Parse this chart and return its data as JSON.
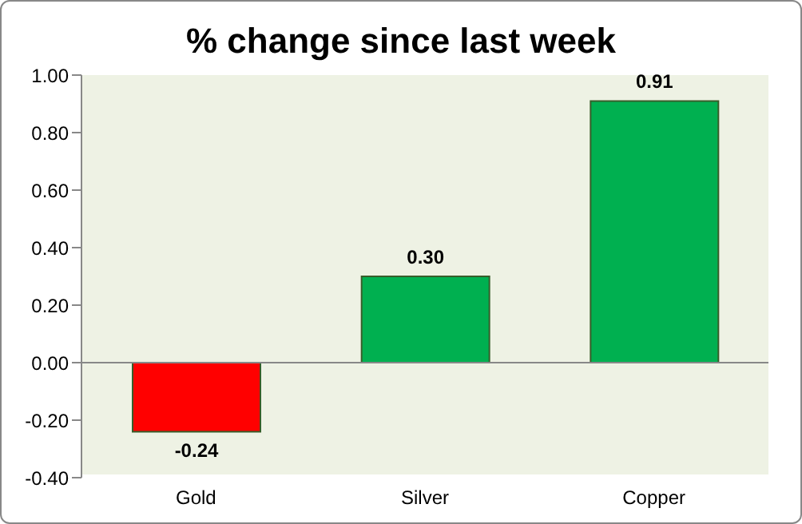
{
  "chart_data": {
    "type": "bar",
    "title": "% change since last week",
    "categories": [
      "Gold",
      "Silver",
      "Copper"
    ],
    "values": [
      -0.24,
      0.3,
      0.91
    ],
    "colors": [
      "#ff0000",
      "#00b050",
      "#00b050"
    ],
    "value_labels": [
      "-0.24",
      "0.30",
      "0.91"
    ],
    "ylim": [
      -0.4,
      1.0
    ],
    "yticks": [
      {
        "value": -0.4,
        "label": "-0.40"
      },
      {
        "value": -0.2,
        "label": "-0.20"
      },
      {
        "value": 0,
        "label": "0.00"
      },
      {
        "value": 0.2,
        "label": "0.20"
      },
      {
        "value": 0.4,
        "label": "0.40"
      },
      {
        "value": 0.6,
        "label": "0.60"
      },
      {
        "value": 0.8,
        "label": "0.80"
      },
      {
        "value": 1.0,
        "label": "1.00"
      }
    ],
    "ref_lines": [
      {
        "axis": "y",
        "value": 0,
        "color": "#888888"
      }
    ],
    "legend": false
  }
}
